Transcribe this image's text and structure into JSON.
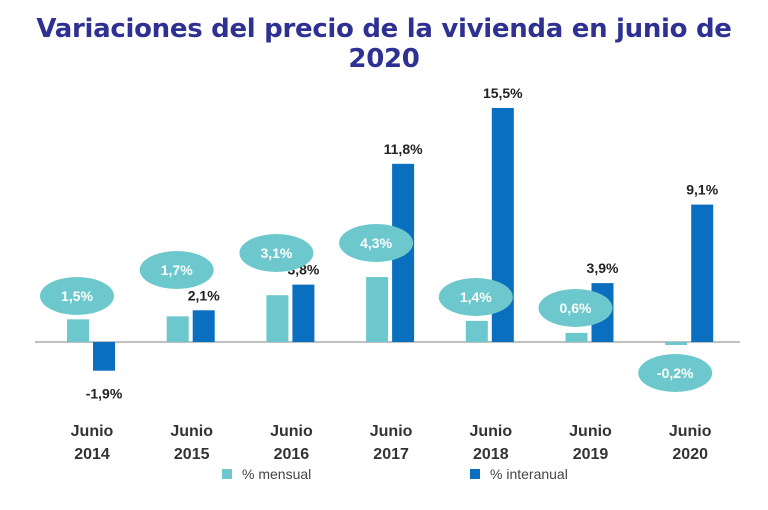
{
  "chart_data": {
    "type": "bar",
    "title": "Variaciones del precio de la vivienda en junio de 2020",
    "categories": [
      [
        "Junio",
        "2014"
      ],
      [
        "Junio",
        "2015"
      ],
      [
        "Junio",
        "2016"
      ],
      [
        "Junio",
        "2017"
      ],
      [
        "Junio",
        "2018"
      ],
      [
        "Junio",
        "2019"
      ],
      [
        "Junio",
        "2020"
      ]
    ],
    "series": [
      {
        "name": "% mensual",
        "color": "#6cc8cc",
        "values": [
          1.5,
          1.7,
          3.1,
          4.3,
          1.4,
          0.6,
          -0.2
        ],
        "labels": [
          "1,5%",
          "1,7%",
          "3,1%",
          "4,3%",
          "1,4%",
          "0,6%",
          "-0,2%"
        ]
      },
      {
        "name": "% interanual",
        "color": "#0b6fbf",
        "values": [
          -1.9,
          2.1,
          3.8,
          11.8,
          15.5,
          3.9,
          9.1
        ],
        "labels": [
          "-1,9%",
          "2,1%",
          "3,8%",
          "11,8%",
          "15,5%",
          "3,9%",
          "9,1%"
        ]
      }
    ],
    "bubble_color": "#6cc8cc",
    "grid": false,
    "legend_position": "bottom"
  }
}
